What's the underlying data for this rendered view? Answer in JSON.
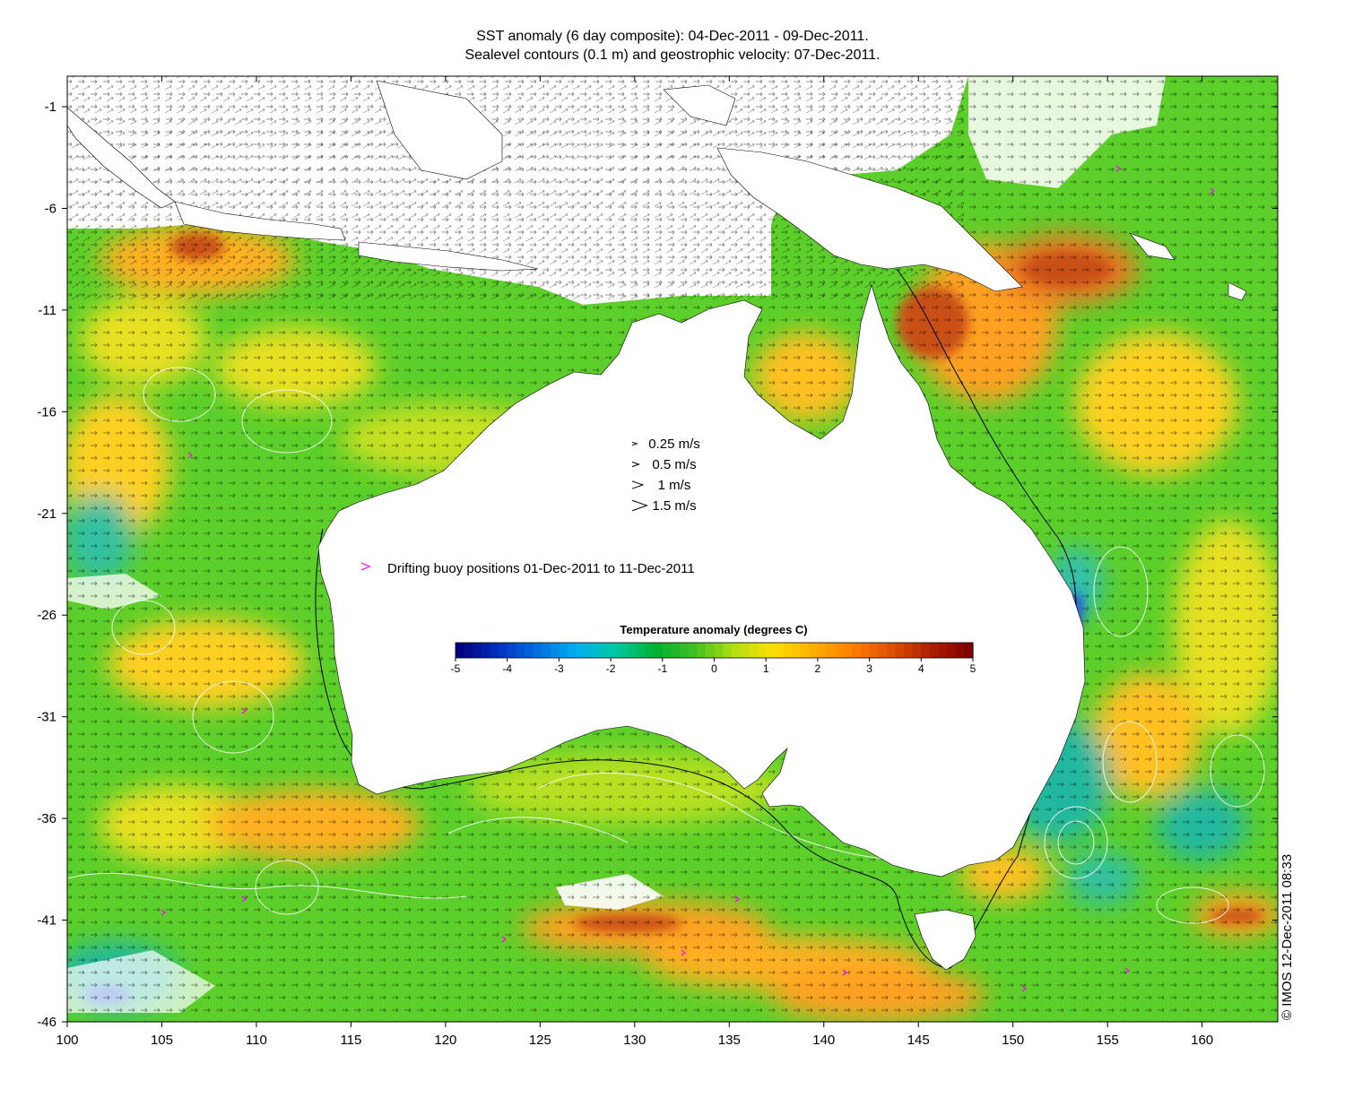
{
  "header": {
    "title_line1": "SST anomaly (6 day composite): 04-Dec-2011 - 09-Dec-2011.",
    "title_line2": "Sealevel contours (0.1 m) and geostrophic velocity: 07-Dec-2011."
  },
  "axes": {
    "x_ticks": [
      "100",
      "105",
      "110",
      "115",
      "120",
      "125",
      "130",
      "135",
      "140",
      "145",
      "150",
      "155",
      "160"
    ],
    "y_ticks": [
      "-1",
      "-6",
      "-11",
      "-16",
      "-21",
      "-26",
      "-31",
      "-36",
      "-41",
      "-46"
    ],
    "x_range": [
      100,
      164
    ],
    "y_range": [
      -46,
      0.5
    ]
  },
  "velocity_legend": {
    "items": [
      {
        "label": "0.25 m/s",
        "speed": 0.25
      },
      {
        "label": "0.5 m/s",
        "speed": 0.5
      },
      {
        "label": "1 m/s",
        "speed": 1
      },
      {
        "label": "1.5 m/s",
        "speed": 1.5
      }
    ]
  },
  "buoy_legend": {
    "label": "Drifting buoy positions 01-Dec-2011 to 11-Dec-2011",
    "color": "#ff00ff"
  },
  "colorbar": {
    "title": "Temperature anomaly (degrees C)",
    "ticks": [
      "-5",
      "-4",
      "-3",
      "-2",
      "-1",
      "0",
      "1",
      "2",
      "3",
      "4",
      "5"
    ],
    "range": [
      -5,
      5
    ],
    "colors": [
      "#000080",
      "#0030c0",
      "#0070e0",
      "#00b0f0",
      "#00c8a0",
      "#00b030",
      "#40c020",
      "#b0e010",
      "#ffe000",
      "#ffb000",
      "#ff8000",
      "#e05000",
      "#b02000",
      "#800000"
    ]
  },
  "colors": {
    "land": "#ffffff",
    "ocean_base": "#5ccf2a",
    "warm_anomaly": "#ffb020",
    "hot_anomaly": "#c85018",
    "cool_anomaly": "#20b8a0",
    "cold_anomaly": "#2050e0",
    "contour": "#ffffff",
    "arrows": "#000000"
  },
  "copyright": "© IMOS 12-Dec-2011 08:33"
}
